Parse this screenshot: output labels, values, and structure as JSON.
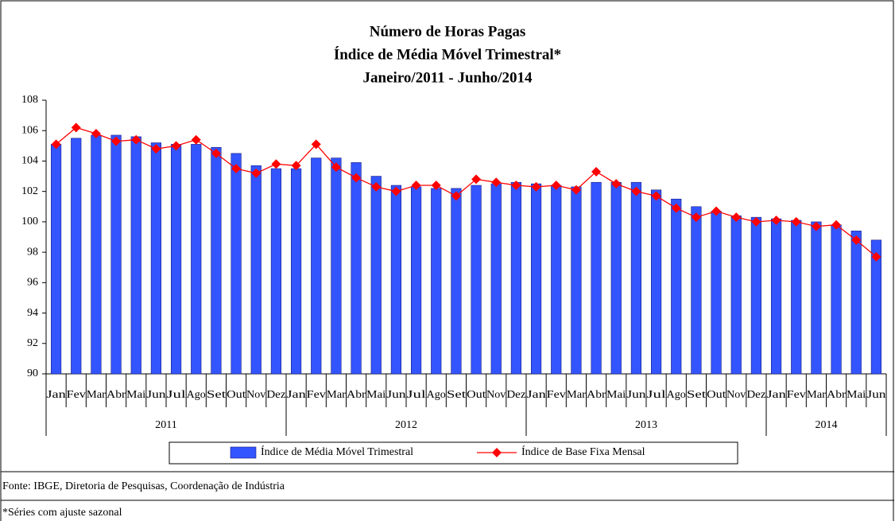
{
  "chart_data": {
    "type": "bar_line",
    "title": [
      "Número de Horas Pagas",
      "Índice de Média Móvel Trimestral*",
      "Janeiro/2011 - Junho/2014"
    ],
    "categories": [
      "Jan",
      "Fev",
      "Mar",
      "Abr",
      "Mai",
      "Jun",
      "Jul",
      "Ago",
      "Set",
      "Out",
      "Nov",
      "Dez",
      "Jan",
      "Fev",
      "Mar",
      "Abr",
      "Mai",
      "Jun",
      "Jul",
      "Ago",
      "Set",
      "Out",
      "Nov",
      "Dez",
      "Jan",
      "Fev",
      "Mar",
      "Abr",
      "Mai",
      "Jun",
      "Jul",
      "Ago",
      "Set",
      "Out",
      "Nov",
      "Dez",
      "Jan",
      "Fev",
      "Mar",
      "Abr",
      "Mai",
      "Jun"
    ],
    "year_labels": [
      "2011",
      "2012",
      "2013",
      "2014"
    ],
    "series": [
      {
        "name": "Índice de Média Móvel Trimestral",
        "type": "bar",
        "color": "#3355ff",
        "values": [
          105.1,
          105.5,
          105.7,
          105.7,
          105.6,
          105.2,
          105.1,
          105.1,
          104.9,
          104.5,
          103.7,
          103.5,
          103.5,
          104.2,
          104.2,
          103.9,
          103.0,
          102.4,
          102.3,
          102.2,
          102.2,
          102.4,
          102.5,
          102.6,
          102.5,
          102.4,
          102.3,
          102.6,
          102.6,
          102.6,
          102.1,
          101.5,
          101.0,
          100.7,
          100.4,
          100.3,
          100.2,
          100.1,
          100.0,
          99.8,
          99.4,
          98.8
        ]
      },
      {
        "name": "Índice de Base Fixa Mensal",
        "type": "line",
        "color": "#ff0000",
        "values": [
          105.1,
          106.2,
          105.8,
          105.3,
          105.4,
          104.8,
          105.0,
          105.4,
          104.5,
          103.5,
          103.2,
          103.8,
          103.7,
          105.1,
          103.6,
          102.9,
          102.3,
          102.0,
          102.4,
          102.4,
          101.7,
          102.8,
          102.6,
          102.4,
          102.3,
          102.4,
          102.1,
          103.3,
          102.5,
          102.0,
          101.7,
          100.9,
          100.3,
          100.7,
          100.3,
          100.0,
          100.1,
          100.0,
          99.7,
          99.8,
          98.8,
          97.7
        ]
      }
    ],
    "ylim": [
      90,
      108
    ],
    "yticks": [
      90,
      92,
      94,
      96,
      98,
      100,
      102,
      104,
      106,
      108
    ],
    "grid": false,
    "source": "Fonte: IBGE, Diretoria de Pesquisas, Coordenação de Indústria",
    "note": "*Séries com ajuste sazonal"
  }
}
